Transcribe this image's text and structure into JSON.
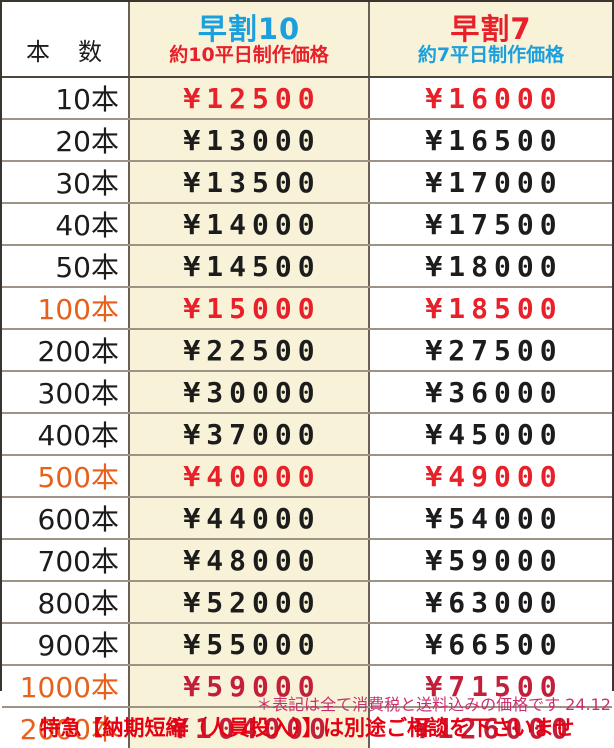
{
  "header": {
    "quantity_label": "本　数",
    "col_hayawari10": {
      "title": "早割10",
      "subtitle": "約10平日制作価格"
    },
    "col_hayawari7": {
      "title": "早割7",
      "subtitle": "約7平日制作価格"
    }
  },
  "rows": [
    {
      "qty": "10本",
      "price10": "¥12500",
      "price7": "¥16000",
      "qty_style": "black",
      "price_style": "red"
    },
    {
      "qty": "20本",
      "price10": "¥13000",
      "price7": "¥16500",
      "qty_style": "black",
      "price_style": "black"
    },
    {
      "qty": "30本",
      "price10": "¥13500",
      "price7": "¥17000",
      "qty_style": "black",
      "price_style": "black"
    },
    {
      "qty": "40本",
      "price10": "¥14000",
      "price7": "¥17500",
      "qty_style": "black",
      "price_style": "black"
    },
    {
      "qty": "50本",
      "price10": "¥14500",
      "price7": "¥18000",
      "qty_style": "black",
      "price_style": "black"
    },
    {
      "qty": "100本",
      "price10": "¥15000",
      "price7": "¥18500",
      "qty_style": "orange",
      "price_style": "red"
    },
    {
      "qty": "200本",
      "price10": "¥22500",
      "price7": "¥27500",
      "qty_style": "black",
      "price_style": "black"
    },
    {
      "qty": "300本",
      "price10": "¥30000",
      "price7": "¥36000",
      "qty_style": "black",
      "price_style": "black"
    },
    {
      "qty": "400本",
      "price10": "¥37000",
      "price7": "¥45000",
      "qty_style": "black",
      "price_style": "black"
    },
    {
      "qty": "500本",
      "price10": "¥40000",
      "price7": "¥49000",
      "qty_style": "orange",
      "price_style": "red"
    },
    {
      "qty": "600本",
      "price10": "¥44000",
      "price7": "¥54000",
      "qty_style": "black",
      "price_style": "black"
    },
    {
      "qty": "700本",
      "price10": "¥48000",
      "price7": "¥59000",
      "qty_style": "black",
      "price_style": "black"
    },
    {
      "qty": "800本",
      "price10": "¥52000",
      "price7": "¥63000",
      "qty_style": "black",
      "price_style": "black"
    },
    {
      "qty": "900本",
      "price10": "¥55000",
      "price7": "¥66500",
      "qty_style": "black",
      "price_style": "black"
    },
    {
      "qty": "1000本",
      "price10": "¥59000",
      "price7": "¥71500",
      "qty_style": "orange",
      "price_style": "crimson"
    },
    {
      "qty": "2000本",
      "price10": "¥104000",
      "price7": "¥126000",
      "qty_style": "orange",
      "price_style": "crimson"
    }
  ],
  "notes": {
    "tax_note": "＊表記は全て消費税と送料込みの価格です 24.12",
    "express_note": "特急【納期短縮（人員投入）】は別途ご相談を下さいませ"
  },
  "colors": {
    "cream_column_bg": "#f8f3d8",
    "bright_red": "#e7202a",
    "crimson": "#c2203a",
    "orange": "#e8611c",
    "blue": "#1b9fdd",
    "note_pink": "#ca2f6b",
    "note_red": "#e60012"
  }
}
